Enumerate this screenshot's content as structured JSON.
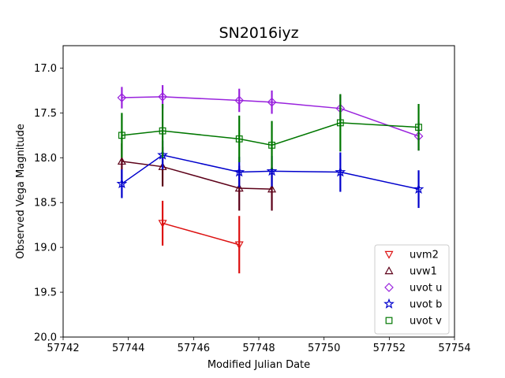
{
  "chart_data": {
    "type": "scatter",
    "title": "SN2016iyz",
    "xlabel": "Modified Julian Date",
    "ylabel": "Observed Vega Magnitude",
    "xlim": [
      57742,
      57754
    ],
    "ylim": [
      20.0,
      16.75
    ],
    "y_inverted": true,
    "grid": false,
    "legend_position": "bottom-right",
    "x_ticks": [
      "57742",
      "57744",
      "57746",
      "57748",
      "57750",
      "57752",
      "57754"
    ],
    "y_ticks": [
      "17.0",
      "17.5",
      "18.0",
      "18.5",
      "19.0",
      "19.5",
      "20.0"
    ],
    "series": [
      {
        "name": "uvm2",
        "color": "#dd1111",
        "marker": "triangle-down",
        "x": [
          57745.05,
          57747.4
        ],
        "y": [
          18.73,
          18.97
        ],
        "err": [
          0.25,
          0.32
        ]
      },
      {
        "name": "uvw1",
        "color": "#5c0018",
        "marker": "triangle-up",
        "x": [
          57743.8,
          57745.05,
          57747.4,
          57748.4
        ],
        "y": [
          18.04,
          18.1,
          18.34,
          18.35
        ],
        "err": [
          0.2,
          0.22,
          0.25,
          0.24
        ]
      },
      {
        "name": "uvot u",
        "color": "#9922dd",
        "marker": "diamond",
        "x": [
          57743.8,
          57745.05,
          57747.4,
          57748.4,
          57750.5,
          57752.9
        ],
        "y": [
          17.33,
          17.32,
          17.36,
          17.38,
          17.45,
          17.76
        ],
        "err": [
          0.12,
          0.13,
          0.13,
          0.13,
          0.15,
          0.16
        ]
      },
      {
        "name": "uvot b",
        "color": "#0000cc",
        "marker": "star",
        "x": [
          57743.8,
          57745.05,
          57747.4,
          57748.4,
          57750.5,
          57752.9
        ],
        "y": [
          18.29,
          17.97,
          18.16,
          18.15,
          18.16,
          18.35
        ],
        "err": [
          0.16,
          0.16,
          0.17,
          0.17,
          0.22,
          0.21
        ]
      },
      {
        "name": "uvot v",
        "color": "#007700",
        "marker": "square",
        "x": [
          57743.8,
          57745.05,
          57747.4,
          57748.4,
          57750.5,
          57752.9
        ],
        "y": [
          17.75,
          17.7,
          17.79,
          17.86,
          17.61,
          17.66
        ],
        "err": [
          0.25,
          0.3,
          0.26,
          0.27,
          0.32,
          0.26
        ]
      }
    ]
  }
}
